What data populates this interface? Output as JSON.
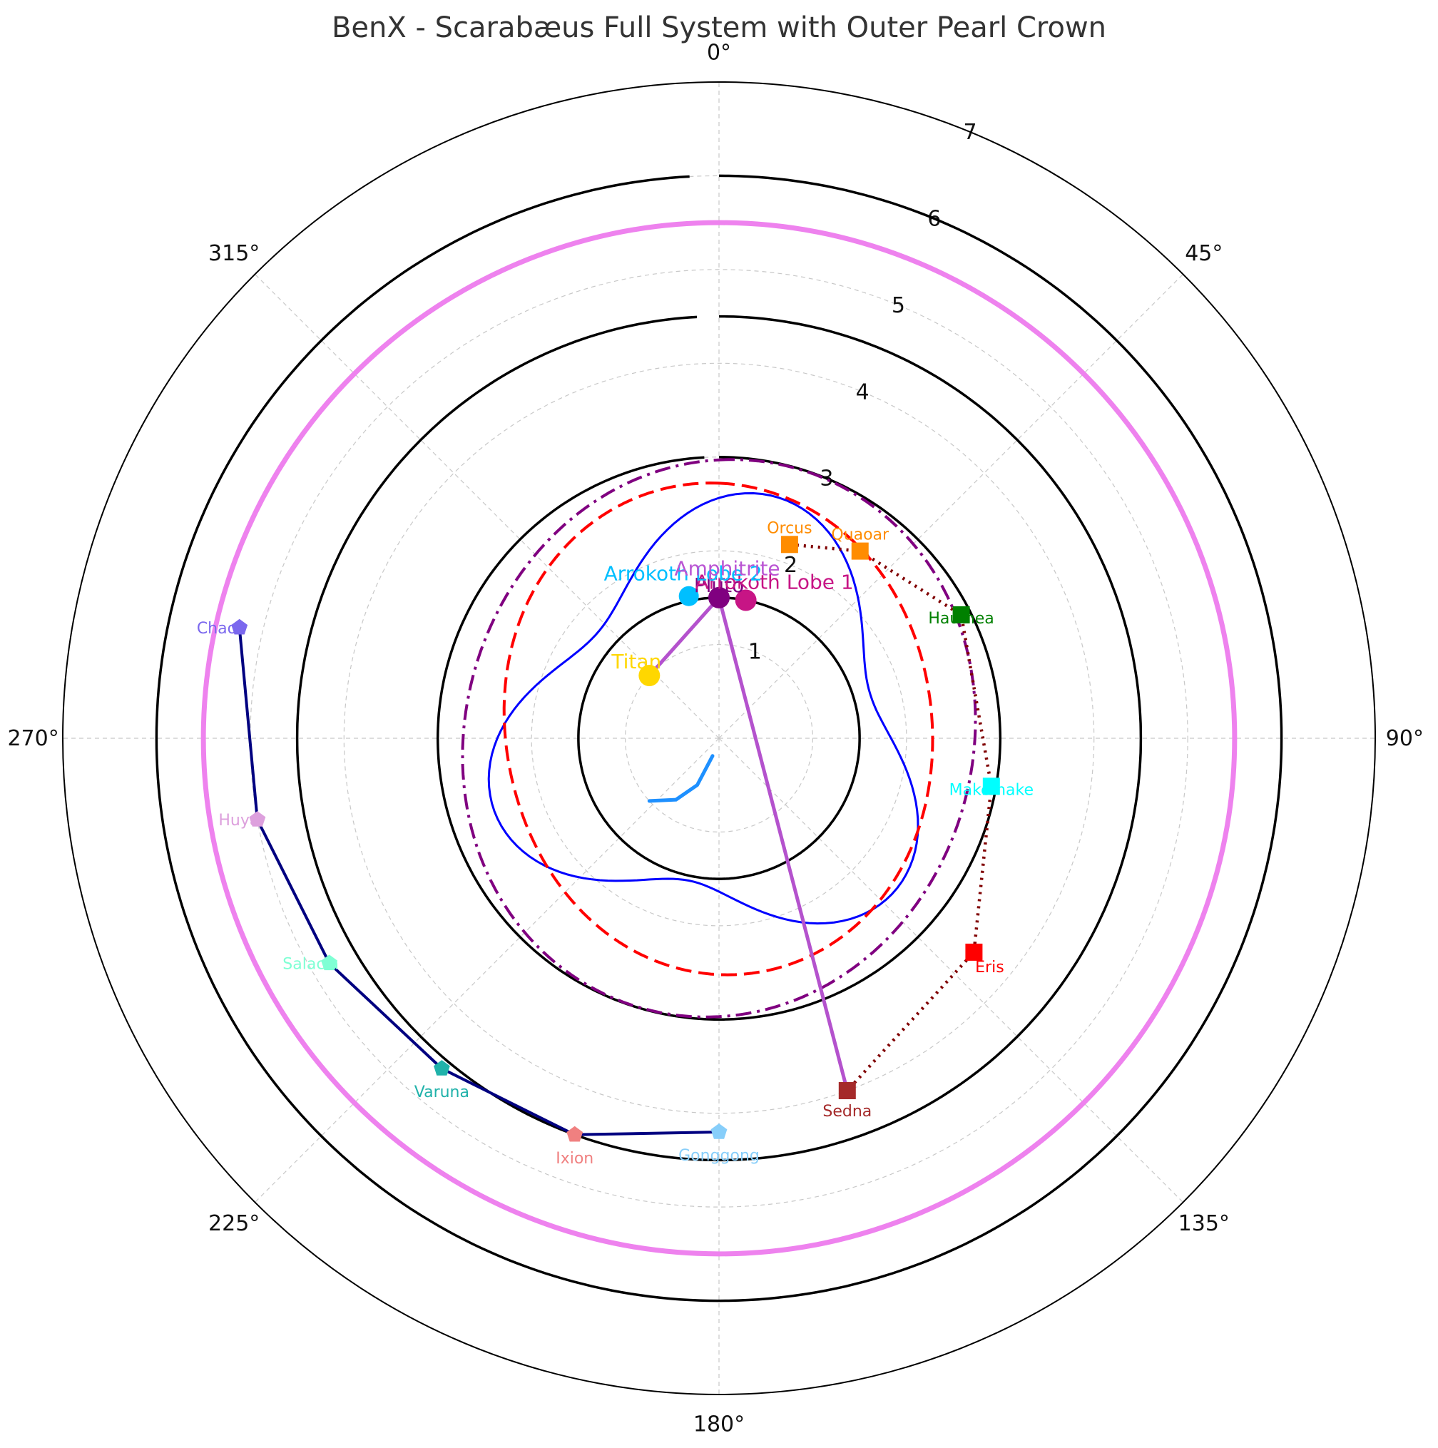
{
  "chart_data": {
    "type": "polar",
    "title": "BenX - Scarabæus Full System with Outer Pearl Crown",
    "theta_zero": "N",
    "theta_direction": "clockwise",
    "rlim": [
      0,
      7
    ],
    "r_ticks": [
      "1",
      "2",
      "3",
      "4",
      "5",
      "6",
      "7"
    ],
    "theta_ticks": [
      "0°",
      "45°",
      "90°",
      "135°",
      "180°",
      "225°",
      "270°",
      "315°"
    ],
    "grid": true,
    "rings": [
      {
        "name": "",
        "r": 1.5,
        "color": "#000000",
        "style": "solid"
      },
      {
        "name": "",
        "r": 3.0,
        "color": "#000000",
        "style": "solid"
      },
      {
        "name": "",
        "r": 4.5,
        "color": "#000000",
        "style": "solid"
      },
      {
        "name": "",
        "r": 6.0,
        "color": "#000000",
        "style": "solid"
      },
      {
        "name": "",
        "r": 5.5,
        "color": "#ee82ee",
        "style": "thick"
      }
    ],
    "curves": [
      {
        "name": "",
        "color": "#0000ff",
        "style": "solid",
        "width": 3,
        "kind": "wavy",
        "base": 2.1,
        "amp": 0.45,
        "freq": 3,
        "phase": 0.15
      },
      {
        "name": "",
        "color": "#ff0000",
        "style": "dashed",
        "width": 4,
        "kind": "wavy",
        "base": 2.45,
        "amp": 0.18,
        "freq": 2,
        "phase": 0.3
      },
      {
        "name": "",
        "color": "#800080",
        "style": "dashdot",
        "width": 4,
        "kind": "ellipse",
        "base": 2.85,
        "amp": 0.08,
        "freq": 2,
        "phase": 0.0
      }
    ],
    "titan_trail": {
      "color": "#1e90ff",
      "points": [
        [
          200,
          0.2
        ],
        [
          205,
          0.55
        ],
        [
          215,
          0.8
        ],
        [
          228,
          1.0
        ]
      ]
    },
    "spokes": {
      "color": "#b452cd",
      "hub": [
        0,
        1.5
      ],
      "ends": [
        [
          309,
          1.0
        ],
        [
          160,
          4.0
        ]
      ]
    },
    "moons": [
      {
        "name": "Pluto",
        "theta": 0,
        "r": 1.5,
        "color": "#800080",
        "size": 15,
        "label_size": "large"
      },
      {
        "name": "Arrokoth Lobe 1",
        "theta": 11,
        "r": 1.5,
        "color": "#c71585",
        "size": 15,
        "label_size": "large"
      },
      {
        "name": "Arrokoth Lobe 2",
        "theta": 348,
        "r": 1.55,
        "color": "#00bfff",
        "size": 14,
        "label_size": "large"
      },
      {
        "name": "Amphitrite",
        "theta": 2,
        "r": 1.65,
        "color": "#ba55d3",
        "size": 0,
        "label_size": "large"
      },
      {
        "name": "Titan",
        "theta": 312,
        "r": 1.0,
        "color": "#ffd700",
        "size": 15,
        "label_size": "large"
      }
    ],
    "dwarf_chain": {
      "color": "#800000",
      "style": "dotted",
      "points": [
        {
          "name": "Orcus",
          "theta": 20,
          "r": 2.2,
          "color": "#ff8c00"
        },
        {
          "name": "Quaoar",
          "theta": 37,
          "r": 2.5,
          "color": "#ff8c00"
        },
        {
          "name": "Haumea",
          "theta": 63,
          "r": 2.9,
          "color": "#008000"
        },
        {
          "name": "Makemake",
          "theta": 100,
          "r": 2.95,
          "color": "#00ffff"
        },
        {
          "name": "Eris",
          "theta": 130,
          "r": 3.55,
          "color": "#ff0000"
        },
        {
          "name": "Sedna",
          "theta": 160,
          "r": 4.0,
          "color": "#a52a2a"
        }
      ]
    },
    "crown_chain": {
      "color": "#000080",
      "style": "solid",
      "points": [
        {
          "name": "Chaos",
          "theta": 283,
          "r": 5.25,
          "color": "#7b68ee"
        },
        {
          "name": "Huya",
          "theta": 260,
          "r": 5.0,
          "color": "#dda0dd"
        },
        {
          "name": "Salacia",
          "theta": 240,
          "r": 4.8,
          "color": "#7fffd4"
        },
        {
          "name": "Varuna",
          "theta": 220,
          "r": 4.6,
          "color": "#20b2aa"
        },
        {
          "name": "Ixion",
          "theta": 200,
          "r": 4.5,
          "color": "#f08080"
        },
        {
          "name": "Gonggong",
          "theta": 180,
          "r": 4.2,
          "color": "#87cefa"
        }
      ]
    }
  }
}
